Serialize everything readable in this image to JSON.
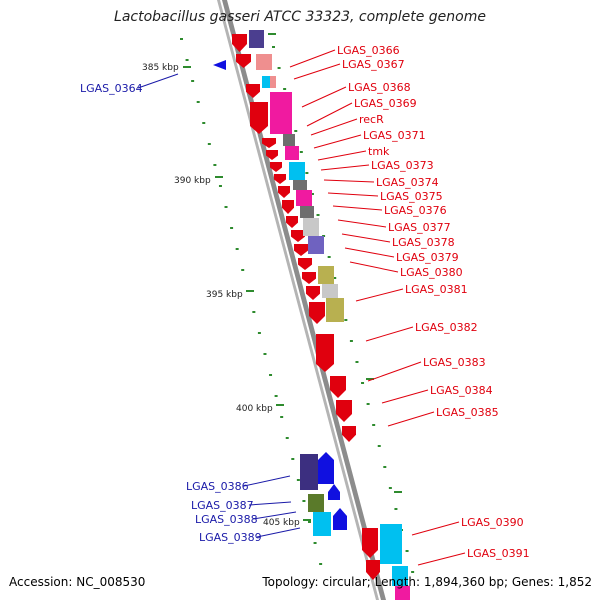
{
  "title": "Lactobacillus gasseri ATCC 33323, complete genome",
  "footer": {
    "accession": "Accession: NC_008530",
    "stats": "Topology: circular; Length: 1,894,360 bp; Genes: 1,852"
  },
  "colors": {
    "label_forward": "#e0000e",
    "label_reverse": "#1a1aa8",
    "backbone": "#8c8c8c",
    "tick": "#2e8b2e"
  },
  "kbp_ticks": [
    "385 kbp",
    "390 kbp",
    "395 kbp",
    "400 kbp",
    "405 kbp"
  ],
  "gene_labels": {
    "forward": [
      "LGAS_0366",
      "LGAS_0367",
      "LGAS_0368",
      "LGAS_0369",
      "recR",
      "LGAS_0371",
      "tmk",
      "LGAS_0373",
      "LGAS_0374",
      "LGAS_0375",
      "LGAS_0376",
      "LGAS_0377",
      "LGAS_0378",
      "LGAS_0379",
      "LGAS_0380",
      "LGAS_0381",
      "LGAS_0382",
      "LGAS_0383",
      "LGAS_0384",
      "LGAS_0385",
      "LGAS_0390",
      "LGAS_0391"
    ],
    "reverse": [
      "LGAS_0364",
      "LGAS_0386",
      "LGAS_0387",
      "LGAS_0388",
      "LGAS_0389"
    ]
  }
}
